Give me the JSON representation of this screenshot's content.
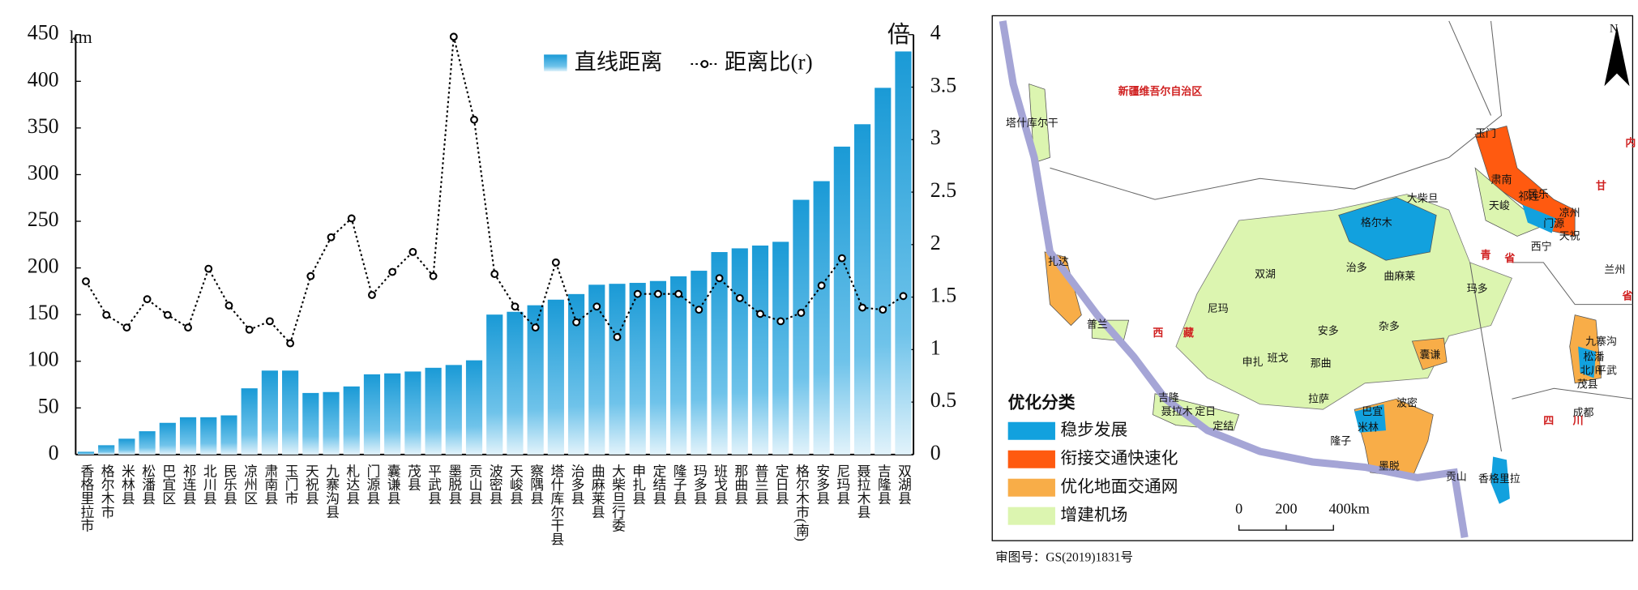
{
  "chart_data": {
    "type": "bar_line",
    "y_label": "km",
    "y2_label": "倍",
    "categories": [
      "香格里拉市",
      "格尔木市",
      "米林县",
      "松潘县",
      "巴宜区",
      "祁连县",
      "北川县",
      "民乐县",
      "凉州区",
      "肃南县",
      "玉门市",
      "天祝县",
      "九寨沟县",
      "札达县",
      "门源县",
      "囊谦县",
      "茂县",
      "平武县",
      "墨脱县",
      "贡山县",
      "波密县",
      "天峻县",
      "察隅县",
      "塔什库尔干县",
      "治多县",
      "曲麻莱县",
      "大柴旦行委",
      "申扎县",
      "定结县",
      "隆子县",
      "玛多县",
      "班戈县",
      "那曲县",
      "普兰县",
      "定日县",
      "格尔木市(南)",
      "安多县",
      "尼玛县",
      "聂拉木县",
      "吉隆县",
      "双湖县"
    ],
    "series": [
      {
        "name": "直线距离",
        "color": "#1a9ad6",
        "values": [
          3,
          10,
          17,
          25,
          34,
          40,
          40,
          42,
          71,
          90,
          90,
          66,
          67,
          73,
          86,
          87,
          89,
          93,
          96,
          101,
          150,
          153,
          160,
          166,
          172,
          182,
          183,
          184,
          186,
          191,
          197,
          217,
          221,
          224,
          228,
          273,
          293,
          330,
          354,
          393,
          432
        ]
      },
      {
        "name": "距离比(r)",
        "color": "#000000",
        "axis": "y2",
        "values": [
          1.65,
          1.33,
          1.21,
          1.48,
          1.33,
          1.21,
          1.77,
          1.42,
          1.19,
          1.27,
          1.06,
          1.7,
          2.07,
          2.25,
          1.52,
          1.74,
          1.93,
          1.7,
          3.98,
          3.19,
          1.72,
          1.41,
          1.21,
          1.83,
          1.26,
          1.41,
          1.12,
          1.53,
          1.53,
          1.53,
          1.38,
          1.68,
          1.49,
          1.34,
          1.27,
          1.35,
          1.61,
          1.87,
          1.4,
          1.38,
          1.51
        ]
      }
    ],
    "ylim": [
      0,
      450
    ],
    "yticks": [
      0,
      50,
      100,
      150,
      200,
      250,
      300,
      350,
      400,
      450
    ],
    "y2lim": [
      0,
      4
    ],
    "y2ticks": [
      0,
      0.5,
      1,
      1.5,
      2,
      2.5,
      3,
      3.5,
      4
    ]
  },
  "map": {
    "labels": [
      "新疆维吾尔自治区",
      "塔什库尔干",
      "玉门",
      "肃南",
      "民乐",
      "凉州",
      "天峻",
      "祁连",
      "门源",
      "天祝",
      "大柴旦",
      "格尔木",
      "西宁",
      "兰州",
      "扎达",
      "普兰",
      "双湖",
      "治多",
      "曲麻莱",
      "玛多",
      "尼玛",
      "安多",
      "杂多",
      "申扎",
      "班戈",
      "那曲",
      "囊谦",
      "九寨沟",
      "松潘",
      "北川",
      "平武",
      "茂县",
      "拉萨",
      "波密",
      "巴宜",
      "米林",
      "墨脱",
      "隆子",
      "吉隆",
      "聂拉木",
      "定日",
      "定结",
      "贡山",
      "香格里拉",
      "成都",
      "青",
      "省",
      "西",
      "藏",
      "四",
      "川",
      "甘",
      "省",
      "内"
    ],
    "legend_title": "优化分类",
    "legend": [
      {
        "name": "稳步发展",
        "color": "#12a1de"
      },
      {
        "name": "衔接交通快速化",
        "color": "#ff5a10"
      },
      {
        "name": "优化地面交通网",
        "color": "#f8ad48"
      },
      {
        "name": "增建机场",
        "color": "#dcf5b0"
      }
    ],
    "scale_labels": [
      "0",
      "200",
      "400km"
    ],
    "north": "N",
    "approval": "审图号：GS(2019)1831号"
  }
}
